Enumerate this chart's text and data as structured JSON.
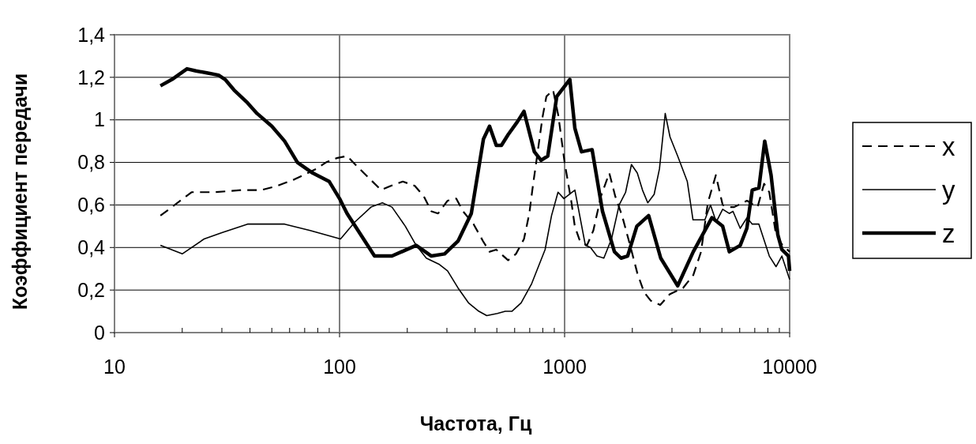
{
  "chart_data": {
    "type": "line",
    "xlabel": "Частота, Гц",
    "ylabel": "Коэффициент передачи",
    "log": "x",
    "xlim": [
      10,
      10000
    ],
    "xticks": [
      10,
      100,
      1000,
      10000
    ],
    "ylim": [
      0,
      1.4
    ],
    "yticks": [
      0,
      {
        "value": 0.2,
        "label": "0,2"
      },
      {
        "value": 0.4,
        "label": "0,4"
      },
      {
        "value": 0.6,
        "label": "0,6"
      },
      {
        "value": 0.8,
        "label": "0,8"
      },
      1,
      {
        "value": 1.2,
        "label": "1,2"
      },
      {
        "value": 1.4,
        "label": "1,4"
      }
    ],
    "grid": true,
    "legend": "right",
    "series": [
      {
        "name": "x",
        "color": "#000000",
        "line_style": "dashed",
        "x": [
          16,
          18,
          22,
          28,
          37,
          45,
          53,
          63,
          79,
          87,
          97,
          108,
          120,
          134,
          153,
          169,
          191,
          216,
          237,
          256,
          274,
          302,
          330,
          354,
          394,
          434,
          464,
          497,
          561,
          608,
          660,
          697,
          725,
          755,
          797,
          830,
          889,
          938,
          1000,
          1070,
          1110,
          1170,
          1257,
          1342,
          1450,
          1580,
          1680,
          1800,
          1955,
          2104,
          2255,
          2415,
          2660,
          2930,
          3360,
          3730,
          4040,
          4330,
          4700,
          5040,
          5390,
          5670,
          6460,
          7200,
          7700,
          8120,
          8700,
          9300,
          10000
        ],
        "values": [
          0.55,
          0.59,
          0.66,
          0.66,
          0.67,
          0.67,
          0.69,
          0.72,
          0.77,
          0.8,
          0.82,
          0.83,
          0.78,
          0.73,
          0.67,
          0.69,
          0.71,
          0.69,
          0.64,
          0.57,
          0.56,
          0.62,
          0.63,
          0.57,
          0.51,
          0.43,
          0.38,
          0.39,
          0.34,
          0.37,
          0.44,
          0.56,
          0.7,
          0.83,
          1.01,
          1.11,
          1.14,
          1.02,
          0.8,
          0.62,
          0.5,
          0.43,
          0.41,
          0.48,
          0.64,
          0.75,
          0.64,
          0.55,
          0.41,
          0.28,
          0.19,
          0.15,
          0.13,
          0.18,
          0.21,
          0.27,
          0.38,
          0.61,
          0.74,
          0.6,
          0.59,
          0.59,
          0.62,
          0.59,
          0.7,
          0.66,
          0.46,
          0.41,
          0.38
        ]
      },
      {
        "name": "y",
        "color": "#000000",
        "line_style": "solid",
        "x": [
          16,
          20,
          25,
          30,
          39,
          48,
          57,
          74,
          101,
          117,
          138,
          155,
          171,
          196,
          219,
          243,
          278,
          302,
          336,
          374,
          416,
          451,
          503,
          545,
          583,
          641,
          714,
          819,
          875,
          935,
          993,
          1111,
          1237,
          1303,
          1392,
          1494,
          1616,
          1748,
          1867,
          1982,
          2104,
          2219,
          2342,
          2500,
          2640,
          2800,
          2940,
          3180,
          3510,
          3720,
          4200,
          4450,
          4720,
          5040,
          5390,
          5600,
          6030,
          6460,
          6820,
          7300,
          8120,
          8700,
          9235,
          10000
        ],
        "values": [
          0.41,
          0.37,
          0.44,
          0.47,
          0.51,
          0.51,
          0.51,
          0.48,
          0.44,
          0.52,
          0.59,
          0.61,
          0.59,
          0.5,
          0.41,
          0.35,
          0.32,
          0.29,
          0.21,
          0.14,
          0.1,
          0.08,
          0.09,
          0.1,
          0.1,
          0.14,
          0.23,
          0.39,
          0.55,
          0.66,
          0.63,
          0.67,
          0.41,
          0.4,
          0.36,
          0.35,
          0.44,
          0.6,
          0.66,
          0.79,
          0.75,
          0.67,
          0.61,
          0.65,
          0.77,
          1.03,
          0.92,
          0.83,
          0.71,
          0.53,
          0.53,
          0.6,
          0.52,
          0.58,
          0.56,
          0.57,
          0.49,
          0.54,
          0.51,
          0.51,
          0.36,
          0.31,
          0.36,
          0.25
        ]
      },
      {
        "name": "z",
        "color": "#000000",
        "line_style": "solid",
        "x": [
          16,
          18,
          21,
          23,
          26,
          29,
          31,
          34,
          39,
          43,
          50,
          57,
          65,
          76,
          90,
          100,
          108,
          143,
          171,
          219,
          256,
          293,
          336,
          385,
          436,
          464,
          497,
          524,
          561,
          616,
          660,
          734,
          786,
          842,
          923,
          1055,
          1111,
          1189,
          1325,
          1474,
          1665,
          1782,
          1906,
          2094,
          2363,
          2674,
          3181,
          3731,
          4514,
          5039,
          5395,
          6030,
          6455,
          6820,
          7301,
          7750,
          8270,
          8860,
          9235,
          9880,
          10000
        ],
        "values": [
          1.16,
          1.19,
          1.24,
          1.23,
          1.22,
          1.21,
          1.19,
          1.14,
          1.08,
          1.03,
          0.97,
          0.9,
          0.8,
          0.75,
          0.71,
          0.63,
          0.56,
          0.36,
          0.36,
          0.41,
          0.36,
          0.37,
          0.43,
          0.56,
          0.91,
          0.97,
          0.88,
          0.88,
          0.93,
          0.99,
          1.04,
          0.85,
          0.81,
          0.83,
          1.11,
          1.19,
          0.96,
          0.85,
          0.86,
          0.57,
          0.38,
          0.35,
          0.36,
          0.5,
          0.55,
          0.35,
          0.22,
          0.38,
          0.54,
          0.5,
          0.38,
          0.41,
          0.49,
          0.67,
          0.68,
          0.9,
          0.74,
          0.46,
          0.39,
          0.36,
          0.29
        ]
      }
    ]
  }
}
